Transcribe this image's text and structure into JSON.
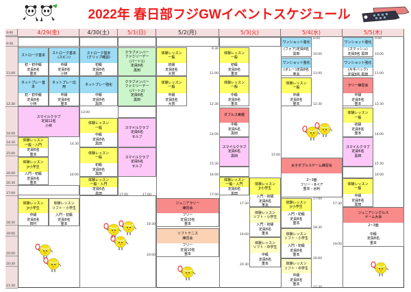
{
  "title": "2022年 春日部フジGWイベントスケジュール",
  "days": [
    {
      "label": "4/29(金)",
      "color": "#e82020"
    },
    {
      "label": "4/30(土)",
      "color": "#222222"
    },
    {
      "label": "5/1(日)",
      "color": "#e82020"
    },
    {
      "label": "5/2(月)",
      "color": "#222222"
    },
    {
      "label": "5/3(火)",
      "color": "#e82020"
    },
    {
      "label": "5/4(水)",
      "color": "#e82020"
    },
    {
      "label": "5/5(木)",
      "color": "#e82020"
    }
  ],
  "time_axis": [
    "9:00",
    "9:30",
    "11:00",
    "12:30",
    "14:00",
    "14:30",
    "15:00",
    "16:00",
    "16:30",
    "17:00",
    "18:30",
    "19:00",
    "20:00",
    "20:30",
    "21:30"
  ],
  "colors": {
    "blue": "#9ddcf4",
    "yellow": "#ffff66",
    "lightyellow": "#ffffc4",
    "green": "#ccf5cc",
    "pink": "#fcc8f8",
    "salmon": "#f98a8a",
    "peach": "#fbd2b4"
  },
  "events": [
    {
      "title": [
        "ストローク基本"
      ],
      "body": [
        "初・初中級",
        "定員8名",
        "重本"
      ],
      "kind": "blue"
    },
    {
      "title": [
        "ストローク基本",
        "(スピン)"
      ],
      "body": [
        "中級",
        "定員8名",
        "小林"
      ],
      "kind": "blue"
    },
    {
      "title": [
        "ストローク基本",
        "(グリップ確認)"
      ],
      "body": [
        "初級",
        "定員8名",
        "黒田"
      ],
      "kind": "blue"
    },
    {
      "title": [
        "クラブメンバー",
        "ファミリーデー",
        "(パート1)"
      ],
      "body": [
        "定員8名",
        "黒田"
      ],
      "kind": "green"
    },
    {
      "title": [
        "体験レッスン",
        "一般"
      ],
      "body": [
        "初級",
        "定員8名",
        "大貫"
      ],
      "kind": "yellow"
    },
    {
      "title": [
        "ネットプレー基",
        "本"
      ],
      "body": [
        "初・初中級",
        "定員8名",
        "小林"
      ],
      "kind": "blue"
    },
    {
      "title": [
        "ネットプレー応",
        "用"
      ],
      "body": [
        "中級",
        "定員8名",
        "重本"
      ],
      "kind": "blue"
    },
    {
      "title": [
        "ネットプレー強化"
      ],
      "body": [
        "中級",
        "定員8名",
        "黒田"
      ],
      "kind": "blue"
    },
    {
      "title": [
        "クラブメンバー",
        "ファミリーデー",
        "(パート2)"
      ],
      "body": [
        "定員8名",
        "黒田"
      ],
      "kind": "green"
    },
    {
      "title": [
        "体験レッスン",
        "一般"
      ],
      "body": [
        "中級",
        "定員8名",
        "大貫"
      ],
      "kind": "yellow"
    },
    {
      "title": [
        "スマイルクラブ"
      ],
      "body": [
        "定員12名",
        "小林"
      ],
      "kind": "pink"
    },
    {
      "title": [
        "体験レッスン",
        "一般"
      ],
      "body": [
        "中級",
        "定員8名",
        "黒田"
      ],
      "kind": "yellow"
    },
    {
      "title": [
        "スマイルクラブ"
      ],
      "body": [
        "定員6名",
        "セルフ"
      ],
      "kind": "pink"
    },
    {
      "title": [
        "体験レッスン",
        "一般・入門"
      ],
      "body": [
        "定員6名",
        "重本"
      ],
      "kind": "yellow"
    },
    {
      "title": [
        "体験レッスン",
        "一般"
      ],
      "body": [
        "初級",
        "定員8名",
        "黒田"
      ],
      "kind": "yellow"
    },
    {
      "title": [
        "スマイルクラブ"
      ],
      "body": [
        "定員6名",
        "セルフ"
      ],
      "kind": "pink"
    },
    {
      "title": [
        "体験レッスン",
        "Jr小学生"
      ],
      "body": [
        "入門・初級",
        "定員6名",
        "重本"
      ],
      "kind": "yellow"
    },
    {
      "title": [
        "体験レッスン",
        "一般・入門"
      ],
      "body": [
        "定員6名",
        "黒田"
      ],
      "kind": "yellow"
    },
    {
      "title": [
        "体験レッスン",
        "Jr小学生"
      ],
      "body": [
        "中級",
        "定員8名",
        "田村"
      ],
      "kind": "yellow"
    },
    {
      "title": [
        "体験レッスン",
        "ソフト・小学生"
      ],
      "body": [
        "入門・初級",
        "定員8名",
        "重本"
      ],
      "kind": "lightyellow"
    },
    {
      "title": [
        "ジュニアラリー",
        "練習会"
      ],
      "body": [
        "フリー",
        "定員10名",
        "重本"
      ],
      "kind": "salmon"
    },
    {
      "title": [
        "ソフトテニス",
        "練習会"
      ],
      "body": [
        "フリー",
        "定員10名",
        "重本"
      ],
      "kind": "peach"
    },
    {
      "title": [
        "体験レッスン",
        "一般"
      ],
      "body": [
        "初級",
        "定員8名",
        "重本"
      ],
      "kind": "yellow"
    },
    {
      "title": [
        "体験レッスン",
        "一般"
      ],
      "body": [
        "中級",
        "定員8名",
        "重本"
      ],
      "kind": "yellow"
    },
    {
      "title": [
        "ダブルス実戦"
      ],
      "body": [
        "中級",
        "定員6名",
        "黒田"
      ],
      "kind": "salmon"
    },
    {
      "title": [
        "スマイルクラブ"
      ],
      "body": [
        "定員6名",
        "黒田"
      ],
      "kind": "pink"
    },
    {
      "title": [
        "体験レッスン",
        "一般・入門"
      ],
      "body": [
        "定員6名",
        "黒田"
      ],
      "kind": "yellow"
    },
    {
      "title": [
        "体験レッスン",
        "Jr小学生"
      ],
      "body": [
        "入門・初級",
        "定員8名",
        "重本"
      ],
      "kind": "yellow"
    },
    {
      "title": [
        "体験レッスン",
        "ソフト・小学生"
      ],
      "body": [
        "入門・初級",
        "定員8名",
        "重本"
      ],
      "kind": "lightyellow"
    },
    {
      "title": [
        "体験レッスン",
        "ソフト・中学生"
      ],
      "body": [
        "中級",
        "定員8名",
        "重本"
      ],
      "kind": "lightyellow"
    },
    {
      "title": [
        "ワンショット強化"
      ],
      "body": [
        "(フォア)定員8名",
        "黒田"
      ],
      "kind": "blue"
    },
    {
      "title": [
        "ワンショット強化"
      ],
      "body": [
        "(ボレー)定員8名",
        "重本"
      ],
      "kind": "blue"
    },
    {
      "title": [
        "体験レッスン",
        "一般"
      ],
      "body": [
        "中級",
        "定員8名",
        "重本"
      ],
      "kind": "yellow"
    },
    {
      "title": [
        "女子ダブルスゲーム練習会"
      ],
      "body": [
        "2~3面",
        "フリー・8ペア",
        "重本・谷利"
      ],
      "kind": "salmon"
    },
    {
      "title": [
        "体験レッスン",
        "Jr小学生"
      ],
      "body": [
        "入門・初級",
        "定員8名",
        "重本"
      ],
      "kind": "yellow"
    },
    {
      "title": [
        "体験レッスン",
        "ソフト・小学生"
      ],
      "body": [
        "入門・初級",
        "定員8名",
        "重本"
      ],
      "kind": "lightyellow"
    },
    {
      "title": [
        "体験レッスン",
        "ソフト・中学生"
      ],
      "body": [
        "中級",
        "定員8名",
        "重本"
      ],
      "kind": "lightyellow"
    },
    {
      "title": [
        "ワンショット強化"
      ],
      "body": [
        "(スマッシュ)",
        "定員8名 黒田"
      ],
      "kind": "blue"
    },
    {
      "title": [
        "ワンショット強化"
      ],
      "body": [
        "(片手バック)",
        "定員8名 黒田"
      ],
      "kind": "blue"
    },
    {
      "title": [
        "ラリー練習会"
      ],
      "body": [
        "中級",
        "定員8名",
        "重本"
      ],
      "kind": "salmon"
    },
    {
      "title": [
        "体験レッスン",
        "一般"
      ],
      "body": [
        "初級",
        "定員8名",
        "重本"
      ],
      "kind": "yellow"
    },
    {
      "title": [
        "スマイルクラブ"
      ],
      "body": [
        "定員6名",
        "黒田"
      ],
      "kind": "pink"
    },
    {
      "title": [
        "体験レッスン",
        "一般"
      ],
      "body": [
        "中級",
        "定員8名",
        "黒田"
      ],
      "kind": "yellow"
    },
    {
      "title": [
        "ジュニアシングルス",
        "ゲーム大会"
      ],
      "body": [
        "2~3面",
        "",
        "中級",
        "定員8名",
        "重本"
      ],
      "kind": "salmon"
    }
  ],
  "side_times": [
    "14:30",
    "16:00",
    "13:00",
    "17:00",
    "17:00",
    "18:30",
    "20:00",
    "9:30",
    "11:00",
    "12:30",
    "14:00",
    "15:30",
    "16:00",
    "17:00",
    "15:00",
    "17:30",
    "19:00",
    "20:30",
    "9:00",
    "10:00",
    "11:00",
    "12:30",
    "17:00",
    "18:30",
    "20:00",
    "21:30",
    "17:30",
    "19:00",
    "9:00",
    "10:00",
    "11:00",
    "12:30",
    "14:00",
    "15:30",
    "16:00"
  ],
  "decorations": {
    "logo": "panda-logo",
    "banner": "koinobori-icon",
    "mascot": "tennis-ball-mascot"
  }
}
